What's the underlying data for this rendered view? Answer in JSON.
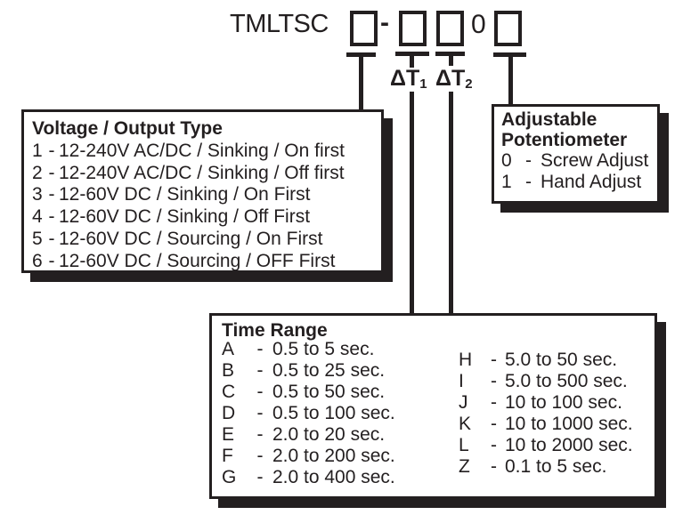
{
  "part_number": {
    "prefix": "TMLTSC",
    "separator": "-",
    "fixed_digit": "0"
  },
  "delta_labels": {
    "dt1_base": "ΔT",
    "dt1_sub": "1",
    "dt2_base": "ΔT",
    "dt2_sub": "2"
  },
  "voltage_box": {
    "title": "Voltage / Output Type",
    "sep": "-",
    "options": [
      {
        "code": "1",
        "desc": "12-240V AC/DC / Sinking / On first"
      },
      {
        "code": "2",
        "desc": "12-240V AC/DC / Sinking / Off first"
      },
      {
        "code": "3",
        "desc": "12-60V DC / Sinking / On First"
      },
      {
        "code": "4",
        "desc": "12-60V DC / Sinking / Off First"
      },
      {
        "code": "5",
        "desc": "12-60V DC / Sourcing / On First"
      },
      {
        "code": "6",
        "desc": "12-60V DC / Sourcing / OFF First"
      }
    ]
  },
  "potentiometer_box": {
    "title_line1": "Adjustable",
    "title_line2": "Potentiometer",
    "sep": "-",
    "options": [
      {
        "code": "0",
        "desc": "Screw Adjust"
      },
      {
        "code": "1",
        "desc": "Hand Adjust"
      }
    ]
  },
  "time_range_box": {
    "title": "Time Range",
    "sep": "-",
    "left_options": [
      {
        "code": "A",
        "desc": "0.5 to 5 sec."
      },
      {
        "code": "B",
        "desc": "0.5 to 25 sec."
      },
      {
        "code": "C",
        "desc": "0.5 to 50 sec."
      },
      {
        "code": "D",
        "desc": "0.5 to 100 sec."
      },
      {
        "code": "E",
        "desc": "2.0 to 20 sec."
      },
      {
        "code": "F",
        "desc": "2.0 to 200 sec."
      },
      {
        "code": "G",
        "desc": "2.0 to 400 sec."
      }
    ],
    "right_options": [
      {
        "code": "H",
        "desc": "5.0 to 50 sec."
      },
      {
        "code": "I",
        "desc": "5.0 to 500 sec."
      },
      {
        "code": "J",
        "desc": "10 to 100 sec."
      },
      {
        "code": "K",
        "desc": "10 to 1000 sec."
      },
      {
        "code": "L",
        "desc": "10 to 2000 sec."
      },
      {
        "code": "Z",
        "desc": "0.1 to 5 sec."
      }
    ]
  },
  "colors": {
    "ink": "#231f20",
    "background": "#ffffff"
  }
}
